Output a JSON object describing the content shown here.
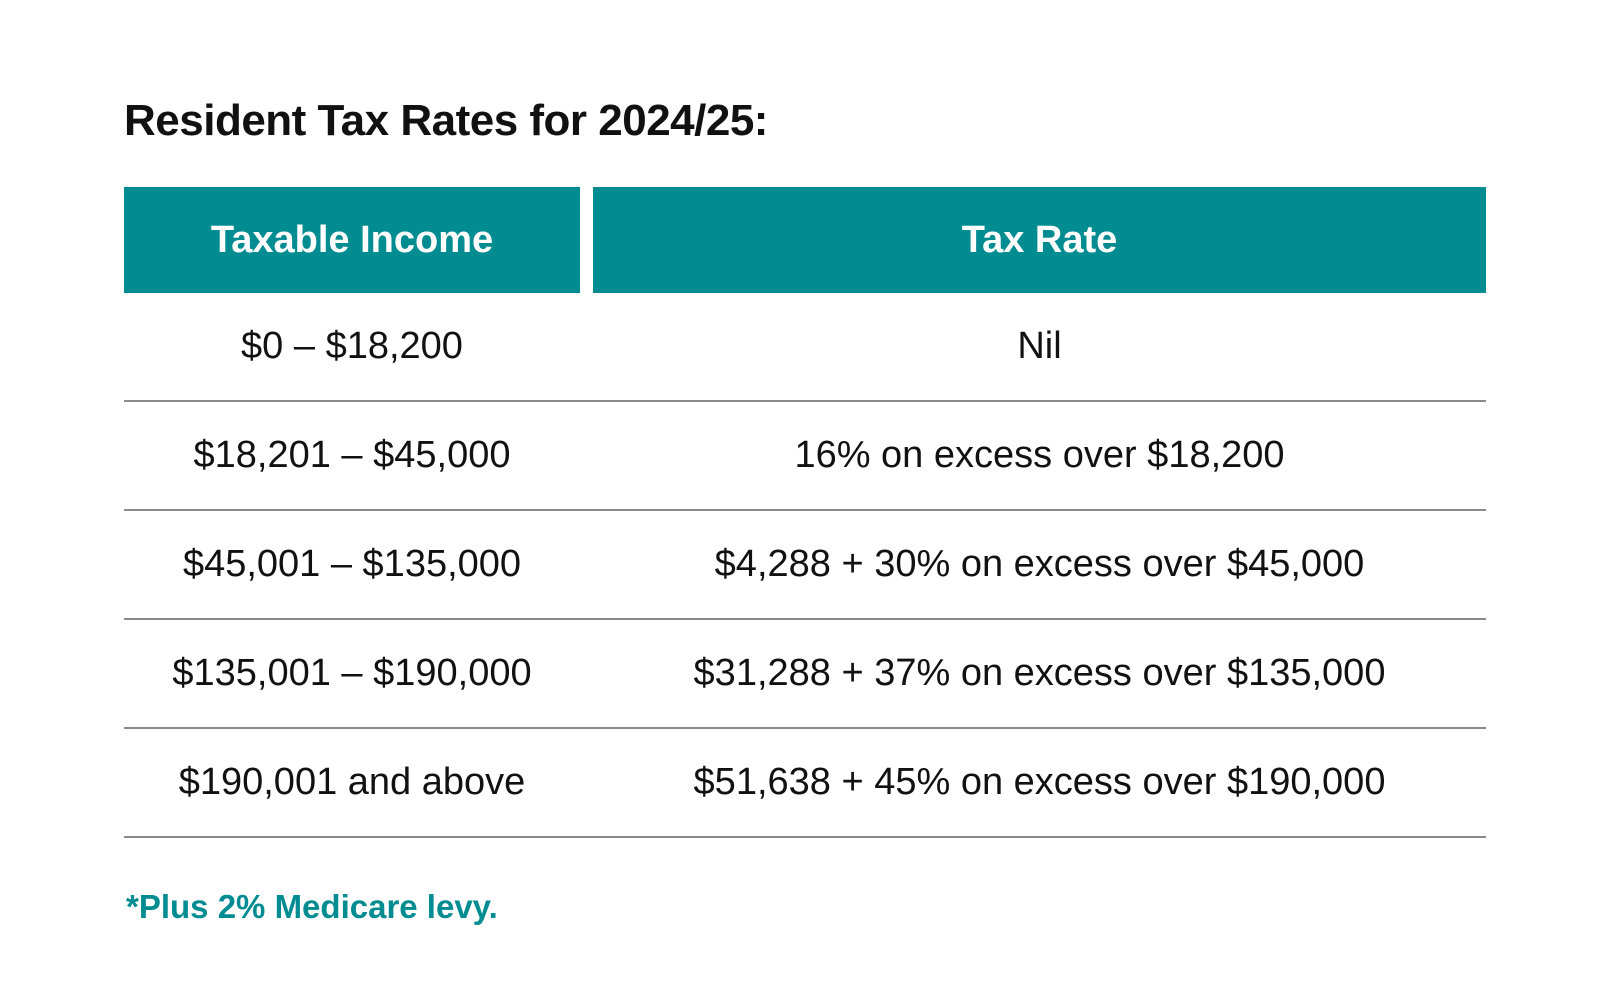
{
  "title": "Resident Tax Rates for 2024/25:",
  "table": {
    "headers": {
      "income": "Taxable Income",
      "rate": "Tax Rate"
    },
    "rows": [
      {
        "income": "$0 – $18,200",
        "rate": "Nil"
      },
      {
        "income": "$18,201 – $45,000",
        "rate": "16% on excess over $18,200"
      },
      {
        "income": "$45,001 – $135,000",
        "rate": "$4,288 + 30% on excess over $45,000"
      },
      {
        "income": "$135,001 – $190,000",
        "rate": "$31,288 + 37% on excess over $135,000"
      },
      {
        "income": "$190,001 and above",
        "rate": "$51,638 + 45% on excess over $190,000"
      }
    ]
  },
  "footnote": "*Plus 2% Medicare levy.",
  "colors": {
    "accent": "#018c92",
    "divider": "#8a8a8a",
    "text": "#111111"
  }
}
